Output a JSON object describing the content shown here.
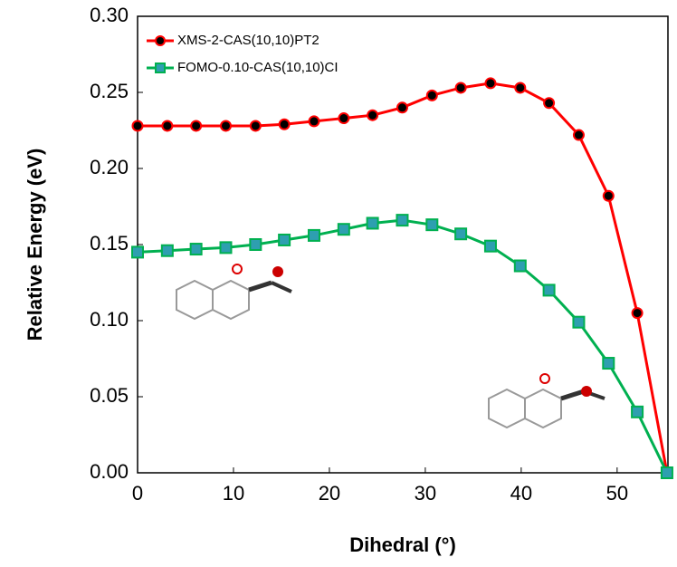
{
  "chart_data": {
    "type": "line",
    "x_label": "Dihedral (°)",
    "y_label": "Relative Energy (eV)",
    "x": [
      0,
      3.1,
      6.1,
      9.2,
      12.3,
      15.3,
      18.4,
      21.5,
      24.5,
      27.6,
      30.7,
      33.7,
      36.8,
      39.9,
      42.9,
      46.0,
      49.1,
      52.1,
      55.2
    ],
    "series": [
      {
        "name": "XMS-2-CAS(10,10)PT2",
        "color": "#ff0000",
        "marker_color": "#000000",
        "values": [
          0.228,
          0.228,
          0.228,
          0.228,
          0.228,
          0.229,
          0.231,
          0.233,
          0.235,
          0.24,
          0.248,
          0.253,
          0.256,
          0.253,
          0.243,
          0.222,
          0.182,
          0.105,
          0
        ]
      },
      {
        "name": "FOMO-0.10-CAS(10,10)CI",
        "color": "#00b050",
        "marker_color": "#2e9fb0",
        "values": [
          0.145,
          0.146,
          0.147,
          0.148,
          0.15,
          0.153,
          0.156,
          0.16,
          0.164,
          0.166,
          0.163,
          0.157,
          0.149,
          0.136,
          0.12,
          0.099,
          0.072,
          0.04,
          0
        ]
      }
    ],
    "xlim": [
      0,
      55.3
    ],
    "ylim": [
      0,
      0.3
    ],
    "xticks": [
      0,
      10,
      20,
      30,
      40,
      50
    ],
    "yticks": [
      {
        "value": 0,
        "label": "0.00"
      },
      {
        "value": 0.05,
        "label": "0.05"
      },
      {
        "value": 0.1,
        "label": "0.10"
      },
      {
        "value": 0.15,
        "label": "0.15"
      },
      {
        "value": 0.2,
        "label": "0.20"
      },
      {
        "value": 0.25,
        "label": "0.25"
      },
      {
        "value": 0.3,
        "label": "0.30"
      }
    ],
    "legend": "top-left"
  }
}
